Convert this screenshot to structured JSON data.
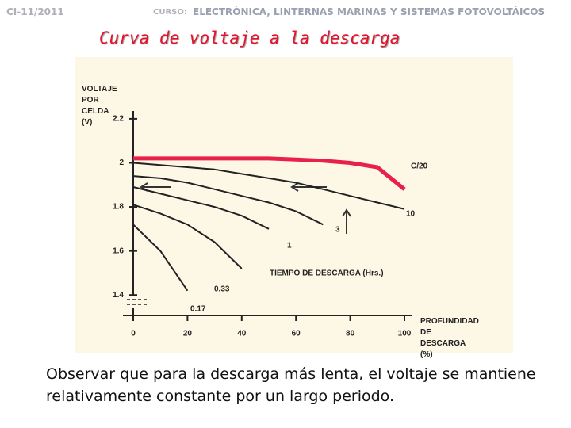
{
  "header": {
    "code": "CI-11/2011",
    "course_label": "CURSO:",
    "course": "ELECTRÓNICA, LINTERNAS MARINAS Y SISTEMAS FOTOVOLTÁICOS"
  },
  "chart_data": {
    "type": "line",
    "title": "Curva de voltaje a la descarga",
    "y_label": "VOLTAJE POR CELDA (V)",
    "x_label": "PROFUNDIDAD DE DESCARGA (%)",
    "annotation": "TIEMPO DE DESCARGA (Hrs.)",
    "x": [
      0,
      10,
      20,
      30,
      40,
      50,
      60,
      70,
      80,
      90,
      100
    ],
    "xlim": [
      0,
      100
    ],
    "xticks": [
      0,
      20,
      40,
      60,
      80,
      100
    ],
    "ylim": [
      1.3,
      2.25
    ],
    "yticks": [
      1.4,
      1.6,
      1.8,
      2.0,
      2.2
    ],
    "series": [
      {
        "name": "C/20",
        "color": "#e8204a",
        "values": [
          2.02,
          2.02,
          2.02,
          2.02,
          2.02,
          2.02,
          2.015,
          2.01,
          2.0,
          1.98,
          1.88
        ]
      },
      {
        "name": "10",
        "color": "#222222",
        "values": [
          2.0,
          1.99,
          1.98,
          1.97,
          1.95,
          1.93,
          1.91,
          1.88,
          1.85,
          1.82,
          1.79
        ]
      },
      {
        "name": "3",
        "color": "#222222",
        "values": [
          1.94,
          1.93,
          1.91,
          1.88,
          1.85,
          1.82,
          1.78,
          1.72,
          null,
          null,
          null
        ]
      },
      {
        "name": "1",
        "color": "#222222",
        "values": [
          1.89,
          1.86,
          1.83,
          1.8,
          1.76,
          1.7,
          null,
          null,
          null,
          null,
          null
        ]
      },
      {
        "name": "0.33",
        "color": "#222222",
        "values": [
          1.81,
          1.77,
          1.72,
          1.64,
          1.52,
          null,
          null,
          null,
          null,
          null,
          null
        ]
      },
      {
        "name": "0.17",
        "color": "#222222",
        "values": [
          1.72,
          1.6,
          1.42,
          null,
          null,
          null,
          null,
          null,
          null,
          null,
          null
        ]
      }
    ]
  },
  "caption": "Observar que para la descarga más lenta, el voltaje se mantiene relativamente constante por un largo periodo."
}
